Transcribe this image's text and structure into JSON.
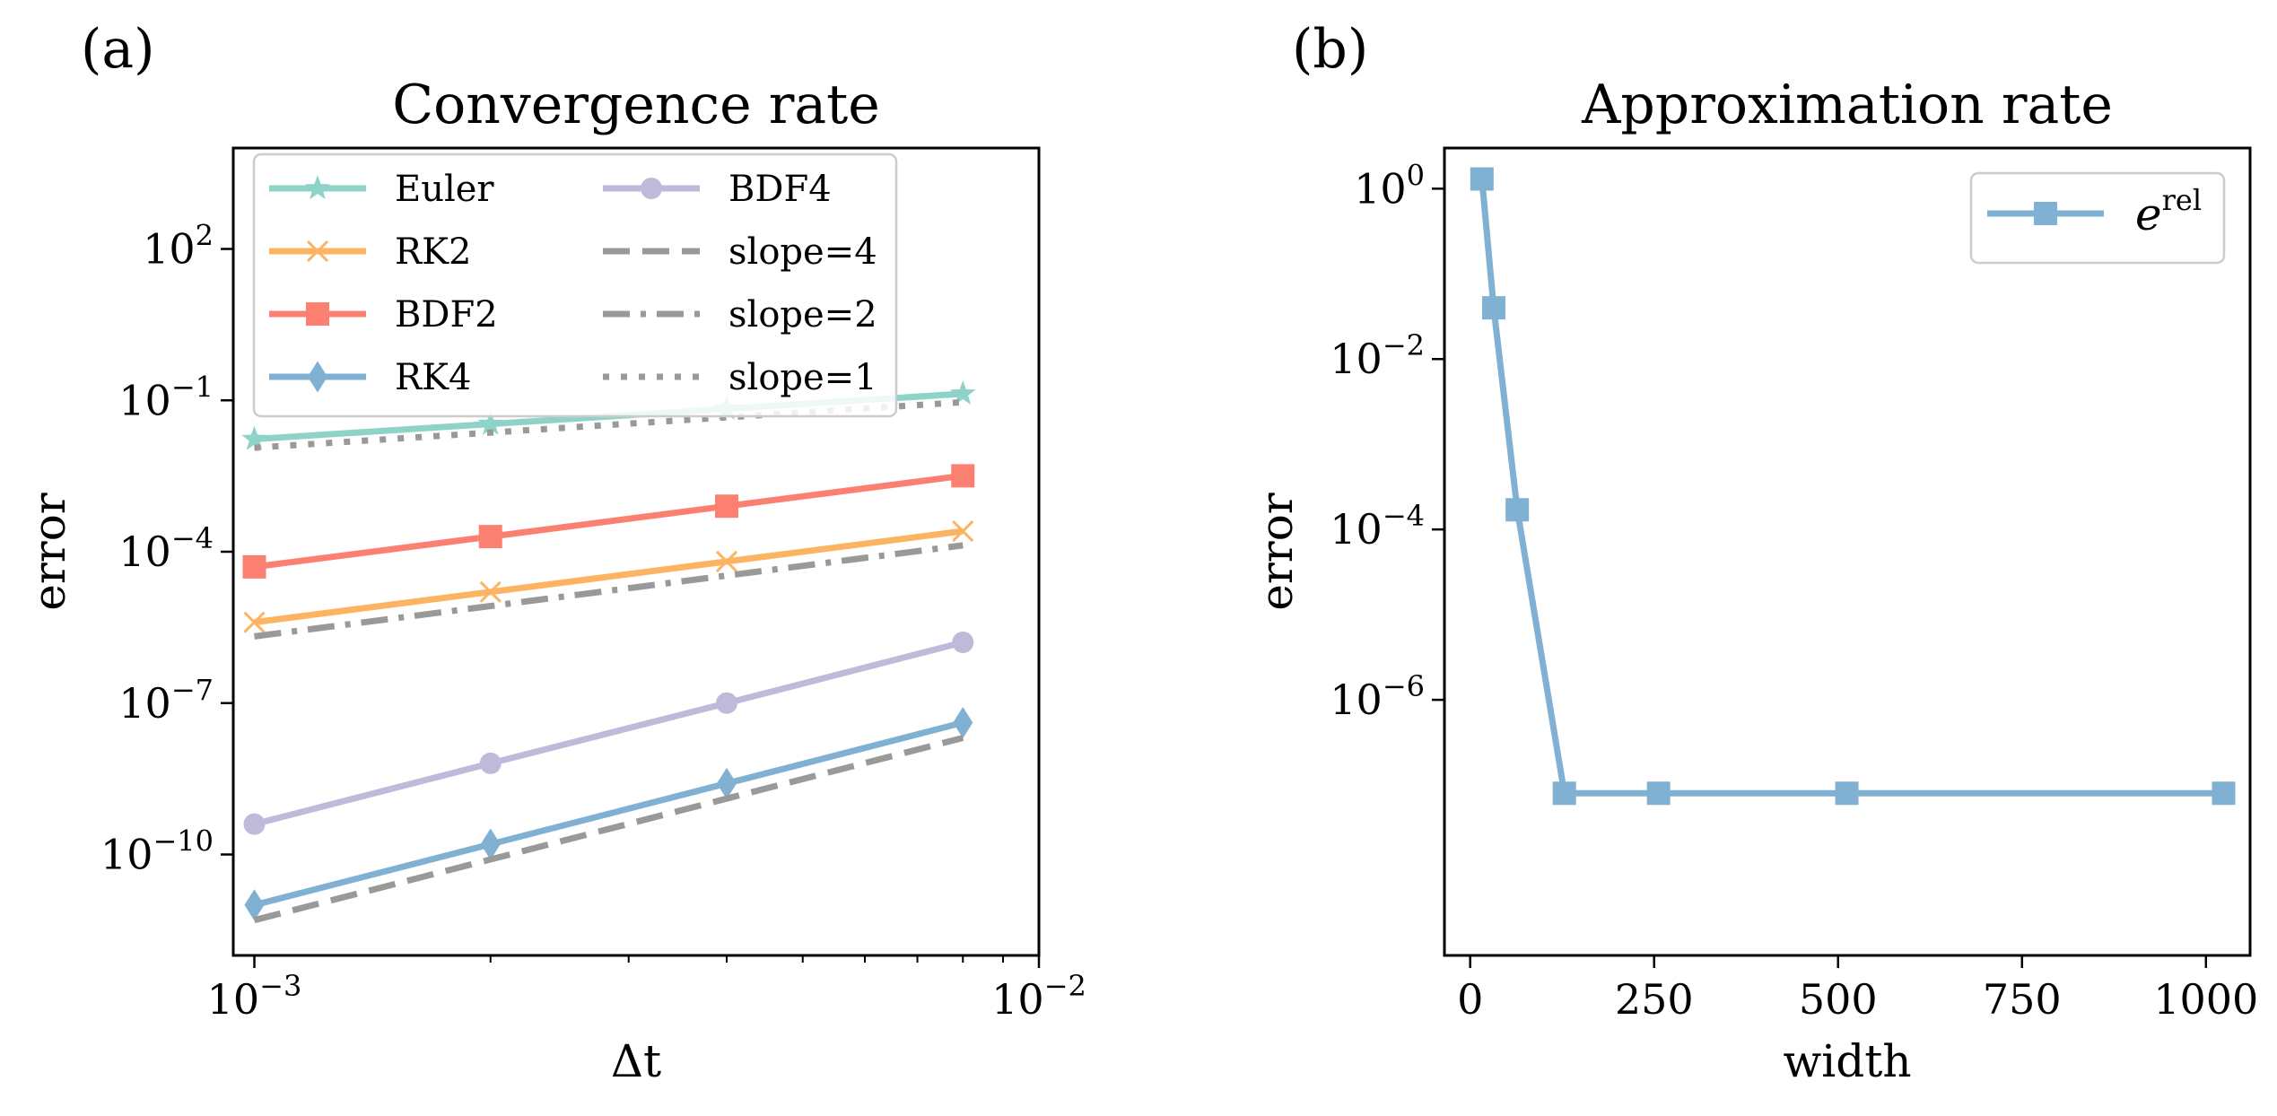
{
  "figure": {
    "panel_a_label": "(a)",
    "panel_b_label": "(b)"
  },
  "chart_data": [
    {
      "type": "line",
      "title": "Convergence rate",
      "xlabel": "Δt",
      "ylabel": "error",
      "xscale": "log",
      "yscale": "log",
      "xlim": [
        0.00094,
        0.01
      ],
      "ylim": [
        1e-12,
        10000
      ],
      "x_ticks": [
        {
          "base": "10",
          "exp": "−3",
          "value": 0.001
        },
        {
          "base": "10",
          "exp": "−2",
          "value": 0.01
        }
      ],
      "y_ticks": [
        {
          "base": "10",
          "exp": "2",
          "value": 100
        },
        {
          "base": "10",
          "exp": "−1",
          "value": 0.1
        },
        {
          "base": "10",
          "exp": "−4",
          "value": 0.0001
        },
        {
          "base": "10",
          "exp": "−7",
          "value": 1e-07
        },
        {
          "base": "10",
          "exp": "−10",
          "value": 1e-10
        }
      ],
      "x": [
        0.001,
        0.002,
        0.004,
        0.008
      ],
      "series": [
        {
          "name": "Euler",
          "color": "#8dd3c7",
          "marker": "star",
          "style": "solid",
          "values": [
            0.017,
            0.034,
            0.068,
            0.135
          ]
        },
        {
          "name": "RK2",
          "color": "#fdb462",
          "marker": "x",
          "style": "solid",
          "values": [
            4e-06,
            1.6e-05,
            6.4e-05,
            0.000256
          ]
        },
        {
          "name": "BDF2",
          "color": "#fb8072",
          "marker": "square",
          "style": "solid",
          "values": [
            5e-05,
            0.0002,
            0.0008,
            0.0032
          ]
        },
        {
          "name": "RK4",
          "color": "#80b1d3",
          "marker": "diamond",
          "style": "solid",
          "values": [
            1e-11,
            1.6e-10,
            2.56e-09,
            4.1e-08
          ]
        },
        {
          "name": "BDF4",
          "color": "#bebada",
          "marker": "circle",
          "style": "solid",
          "values": [
            4e-10,
            6.4e-09,
            1e-07,
            1.6e-06
          ]
        },
        {
          "name": "slope=4",
          "color": "#999999",
          "marker": "none",
          "style": "dashed",
          "values": [
            5e-12,
            8e-11,
            1.28e-09,
            2.05e-08
          ]
        },
        {
          "name": "slope=2",
          "color": "#999999",
          "marker": "none",
          "style": "dashdot",
          "values": [
            2.1e-06,
            8.4e-06,
            3.36e-05,
            0.000134
          ]
        },
        {
          "name": "slope=1",
          "color": "#999999",
          "marker": "none",
          "style": "dotted",
          "values": [
            0.0115,
            0.023,
            0.046,
            0.092
          ]
        }
      ],
      "legend": {
        "location": "upper-left",
        "columns": 2
      }
    },
    {
      "type": "line",
      "title": "Approximation rate",
      "xlabel": "width",
      "ylabel": "error",
      "xscale": "linear",
      "yscale": "log",
      "xlim": [
        -35,
        1060
      ],
      "ylim": [
        1e-09,
        3
      ],
      "x_ticks": [
        {
          "label": "0",
          "value": 0
        },
        {
          "label": "250",
          "value": 250
        },
        {
          "label": "500",
          "value": 500
        },
        {
          "label": "750",
          "value": 750
        },
        {
          "label": "1000",
          "value": 1000
        }
      ],
      "y_ticks": [
        {
          "base": "10",
          "exp": "0",
          "value": 1
        },
        {
          "base": "10",
          "exp": "−2",
          "value": 0.01
        },
        {
          "base": "10",
          "exp": "−4",
          "value": 0.0001
        },
        {
          "base": "10",
          "exp": "−6",
          "value": 1e-06
        }
      ],
      "series": [
        {
          "name_base": "e",
          "name_sup": "rel",
          "color": "#80b1d3",
          "marker": "square",
          "style": "solid",
          "x": [
            16,
            32,
            64,
            128,
            256,
            512,
            1024
          ],
          "values": [
            1.3,
            0.04,
            0.00017,
            8e-08,
            8e-08,
            8e-08,
            8e-08
          ]
        }
      ],
      "legend": {
        "location": "upper-right",
        "columns": 1
      }
    }
  ]
}
